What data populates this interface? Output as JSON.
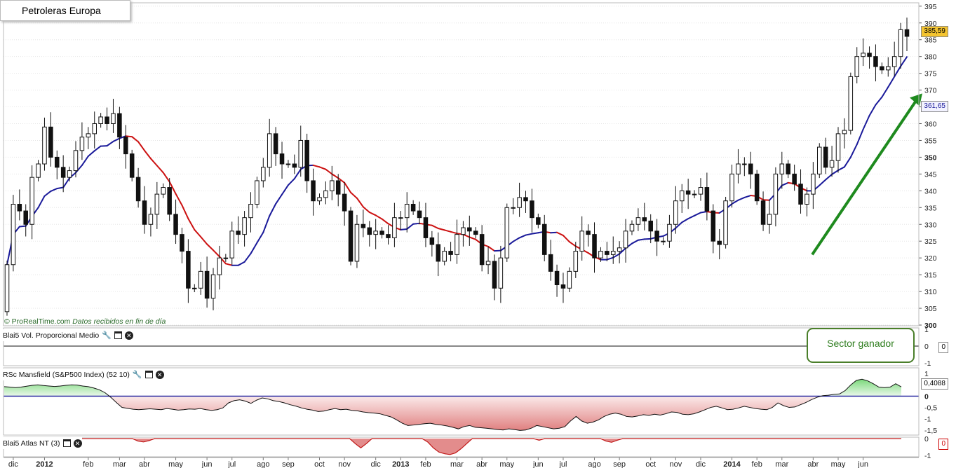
{
  "title": "Petroleras Europa",
  "credit": {
    "site": "© ProRealTime.com",
    "note": "Datos recibidos en fin de día"
  },
  "callout": "Sector ganador",
  "colors": {
    "up_candle": "#ffffff",
    "down_candle": "#111111",
    "ma_up": "#1a1a9a",
    "ma_down": "#cc1111",
    "arrow": "#1e8a1e",
    "positive_fill": "#7bd97b",
    "negative_fill": "#e08080"
  },
  "chart_data": [
    {
      "type": "candlestick",
      "name": "Petroleras Europa",
      "ylim": [
        300,
        396
      ],
      "yticks": [
        300,
        305,
        310,
        315,
        320,
        325,
        330,
        335,
        340,
        345,
        350,
        355,
        360,
        365,
        370,
        375,
        380,
        385,
        390,
        395
      ],
      "bold_ticks": [
        300,
        350
      ],
      "last_price": "385,59",
      "ma_value": "361,65",
      "x_labels": [
        {
          "i": 1,
          "t": "dic"
        },
        {
          "i": 6,
          "t": "2012",
          "bold": true
        },
        {
          "i": 13,
          "t": "feb"
        },
        {
          "i": 18,
          "t": "mar"
        },
        {
          "i": 22,
          "t": "abr"
        },
        {
          "i": 27,
          "t": "may"
        },
        {
          "i": 32,
          "t": "jun"
        },
        {
          "i": 36,
          "t": "jul"
        },
        {
          "i": 41,
          "t": "ago"
        },
        {
          "i": 45,
          "t": "sep"
        },
        {
          "i": 50,
          "t": "oct"
        },
        {
          "i": 54,
          "t": "nov"
        },
        {
          "i": 59,
          "t": "dic"
        },
        {
          "i": 63,
          "t": "2013",
          "bold": true
        },
        {
          "i": 67,
          "t": "feb"
        },
        {
          "i": 72,
          "t": "mar"
        },
        {
          "i": 76,
          "t": "abr"
        },
        {
          "i": 80,
          "t": "may"
        },
        {
          "i": 85,
          "t": "jun"
        },
        {
          "i": 89,
          "t": "jul"
        },
        {
          "i": 94,
          "t": "ago"
        },
        {
          "i": 98,
          "t": "sep"
        },
        {
          "i": 103,
          "t": "oct"
        },
        {
          "i": 107,
          "t": "nov"
        },
        {
          "i": 111,
          "t": "dic"
        },
        {
          "i": 116,
          "t": "2014",
          "bold": true
        },
        {
          "i": 120,
          "t": "feb"
        },
        {
          "i": 124,
          "t": "mar"
        },
        {
          "i": 129,
          "t": "abr"
        },
        {
          "i": 133,
          "t": "may"
        },
        {
          "i": 137,
          "t": "jun"
        }
      ],
      "closes": [
        318,
        336,
        334,
        330,
        344,
        348,
        359,
        350,
        347,
        344,
        346,
        352,
        356,
        357,
        360,
        362,
        360,
        363,
        356,
        351,
        344,
        337,
        330,
        333,
        339,
        341,
        333,
        327,
        322,
        311,
        311,
        316,
        308,
        315,
        320,
        320,
        328,
        327,
        332,
        336,
        343,
        347,
        357,
        351,
        348,
        348,
        347,
        355,
        343,
        337,
        338,
        340,
        343,
        339,
        334,
        319,
        330,
        329,
        327,
        328,
        327,
        326,
        332,
        332,
        336,
        334,
        332,
        326,
        324,
        319,
        322,
        321,
        327,
        329,
        328,
        327,
        318,
        319,
        311,
        320,
        335,
        335,
        338,
        337,
        332,
        330,
        321,
        316,
        312,
        311,
        316,
        322,
        328,
        327,
        320,
        322,
        321,
        322,
        323,
        328,
        330,
        332,
        331,
        328,
        325,
        325,
        330,
        337,
        340,
        339,
        339,
        341,
        334,
        325,
        324,
        337,
        345,
        348,
        348,
        345,
        337,
        330,
        333,
        345,
        348,
        345,
        342,
        336,
        339,
        345,
        353,
        347,
        349,
        357,
        358,
        374,
        380,
        381,
        380,
        377,
        376,
        377,
        380,
        388,
        386
      ]
    },
    {
      "type": "line",
      "name": "Blai5 Vol. Proporcional Medio",
      "ylim": [
        -1,
        1
      ],
      "yticks": [
        -1,
        0,
        1
      ],
      "last_value": "0",
      "values": "flat at 0"
    },
    {
      "type": "area",
      "name": "RSc Mansfield (S&P500 Index) (52 10)",
      "ylim": [
        -1.6,
        1.1
      ],
      "yticks": [
        -1.5,
        -1,
        -0.5,
        0,
        0.5,
        1
      ],
      "ytick_labels": [
        "-1,5",
        "-1",
        "-0,5",
        "0",
        "0,5",
        "1"
      ],
      "last_value": "0,4088",
      "values": [
        0.42,
        0.4,
        0.38,
        0.4,
        0.44,
        0.48,
        0.5,
        0.47,
        0.45,
        0.43,
        0.45,
        0.48,
        0.5,
        0.49,
        0.45,
        0.42,
        0.36,
        0.28,
        0.15,
        -0.05,
        -0.28,
        -0.5,
        -0.54,
        -0.58,
        -0.6,
        -0.58,
        -0.56,
        -0.58,
        -0.6,
        -0.55,
        -0.58,
        -0.62,
        -0.6,
        -0.57,
        -0.58,
        -0.55,
        -0.6,
        -0.63,
        -0.6,
        -0.52,
        -0.3,
        -0.2,
        -0.16,
        -0.22,
        -0.32,
        -0.18,
        -0.08,
        -0.12,
        -0.2,
        -0.24,
        -0.3,
        -0.38,
        -0.44,
        -0.52,
        -0.58,
        -0.62,
        -0.68,
        -0.66,
        -0.6,
        -0.55,
        -0.6,
        -0.58,
        -0.63,
        -0.65,
        -0.7,
        -0.73,
        -0.75,
        -0.78,
        -0.85,
        -0.92,
        -1.05,
        -1.2,
        -1.3,
        -1.28,
        -1.25,
        -1.22,
        -1.2,
        -1.25,
        -1.28,
        -1.32,
        -1.38,
        -1.45,
        -1.35,
        -1.3,
        -1.38,
        -1.4,
        -1.42,
        -1.45,
        -1.48,
        -1.5,
        -1.45,
        -1.48,
        -1.52,
        -1.5,
        -1.42,
        -1.3,
        -1.35,
        -1.4,
        -1.45,
        -1.42,
        -1.35,
        -1.1,
        -0.9,
        -1.1,
        -1.2,
        -1.15,
        -1.05,
        -0.9,
        -0.8,
        -0.75,
        -0.8,
        -0.9,
        -0.92,
        -0.88,
        -0.82,
        -0.85,
        -0.8,
        -0.84,
        -0.78,
        -0.7,
        -0.72,
        -0.8,
        -0.82,
        -0.78,
        -0.7,
        -0.6,
        -0.5,
        -0.45,
        -0.52,
        -0.6,
        -0.58,
        -0.52,
        -0.45,
        -0.5,
        -0.55,
        -0.58,
        -0.6,
        -0.5,
        -0.3,
        -0.42,
        -0.5,
        -0.48,
        -0.38,
        -0.28,
        -0.15,
        -0.05,
        0.02,
        0.04,
        0.08,
        0.1,
        0.25,
        0.5,
        0.7,
        0.75,
        0.68,
        0.55,
        0.4,
        0.38,
        0.4,
        0.55,
        0.41
      ]
    },
    {
      "type": "area",
      "name": "Blai5 Atlas NT (3)",
      "ylim": [
        -1,
        0
      ],
      "yticks": [
        -1,
        0
      ],
      "last_value": "0",
      "values": [
        0,
        0,
        0,
        0,
        0,
        0,
        0,
        0,
        0,
        0,
        0,
        0,
        0,
        0,
        0,
        0,
        0,
        0,
        0,
        0,
        0,
        0,
        0,
        0,
        -0.15,
        -0.2,
        -0.12,
        0,
        0,
        0,
        0,
        0,
        0,
        0,
        0,
        0,
        0,
        0,
        0,
        0,
        0,
        0,
        0,
        0,
        0,
        0,
        0,
        0,
        0,
        0,
        0,
        0,
        0,
        0,
        0,
        0,
        0,
        0,
        0,
        0,
        0,
        0,
        0,
        -0.3,
        -0.55,
        -0.3,
        0,
        0,
        0,
        0,
        0,
        0,
        0,
        0,
        0,
        0,
        -0.2,
        -0.55,
        -0.8,
        -0.9,
        -0.95,
        -0.85,
        -0.6,
        -0.3,
        0,
        0,
        0,
        0,
        0,
        0,
        0,
        0,
        0,
        0,
        0,
        0,
        -0.1,
        0,
        0,
        0,
        0,
        0,
        0,
        0,
        0,
        0,
        0,
        0,
        -0.15,
        -0.22,
        -0.1,
        0,
        0,
        0,
        0,
        0,
        0,
        0,
        0,
        0,
        0,
        0,
        0,
        0,
        0,
        0,
        0,
        0,
        0,
        0,
        0,
        0,
        0,
        0,
        0,
        0,
        0,
        0,
        0,
        0,
        0,
        0,
        0,
        0,
        0,
        0,
        0,
        0,
        0,
        0,
        0,
        0,
        0,
        0,
        0,
        0,
        0,
        0,
        0,
        0,
        0,
        0
      ]
    }
  ]
}
